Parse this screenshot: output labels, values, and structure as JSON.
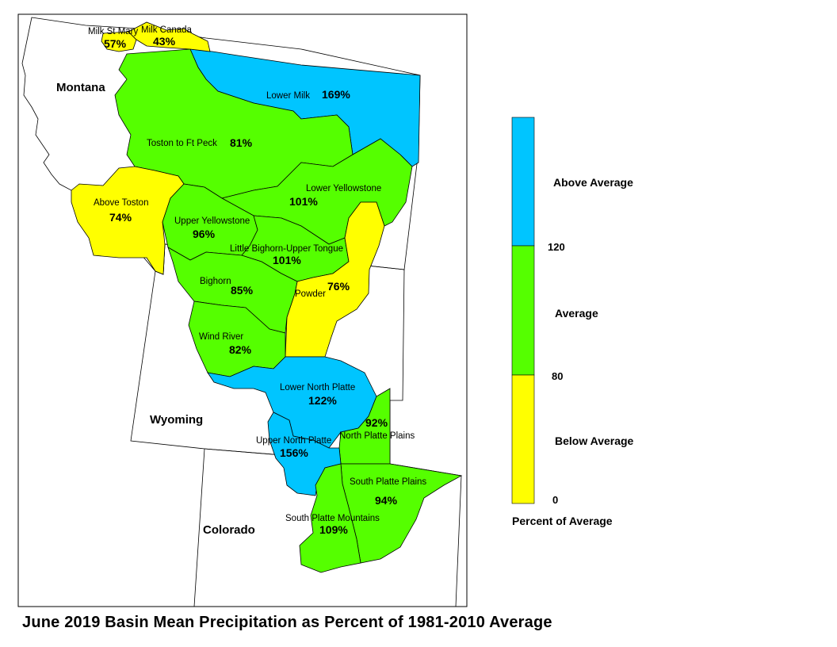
{
  "caption": "June 2019 Basin Mean Precipitation as Percent of 1981-2010 Average",
  "colors": {
    "above": "#00c5ff",
    "average": "#55ff00",
    "below": "#ffff00"
  },
  "states": {
    "montana": "Montana",
    "wyoming": "Wyoming",
    "colorado": "Colorado"
  },
  "basins": {
    "milk_st_mary": {
      "name": "Milk St Mary",
      "pct": "57%",
      "category": "below"
    },
    "milk_canada": {
      "name": "Milk Canada",
      "pct": "43%",
      "category": "below"
    },
    "lower_milk": {
      "name": "Lower Milk",
      "pct": "169%",
      "category": "above"
    },
    "toston_ft_peck": {
      "name": "Toston to Ft Peck",
      "pct": "81%",
      "category": "average"
    },
    "above_toston": {
      "name": "Above Toston",
      "pct": "74%",
      "category": "below"
    },
    "lower_yellowstone": {
      "name": "Lower Yellowstone",
      "pct": "101%",
      "category": "average"
    },
    "upper_yellowstone": {
      "name": "Upper Yellowstone",
      "pct": "96%",
      "category": "average"
    },
    "little_bighorn": {
      "name": "Little Bighorn-Upper Tongue",
      "pct": "101%",
      "category": "average"
    },
    "powder": {
      "name": "Powder",
      "pct": "76%",
      "category": "below"
    },
    "bighorn": {
      "name": "Bighorn",
      "pct": "85%",
      "category": "average"
    },
    "wind_river": {
      "name": "Wind River",
      "pct": "82%",
      "category": "average"
    },
    "lower_north_platte": {
      "name": "Lower North Platte",
      "pct": "122%",
      "category": "above"
    },
    "north_platte_plains": {
      "name": "North Platte Plains",
      "pct": "92%",
      "category": "average"
    },
    "upper_north_platte": {
      "name": "Upper North Platte",
      "pct": "156%",
      "category": "above"
    },
    "south_platte_plains": {
      "name": "South Platte Plains",
      "pct": "94%",
      "category": "average"
    },
    "south_platte_mountains": {
      "name": "South Platte Mountains",
      "pct": "109%",
      "category": "average"
    }
  },
  "legend": {
    "above_label": "Above Average",
    "average_label": "Average",
    "below_label": "Below Average",
    "tick_high": "120",
    "tick_mid": "80",
    "tick_low": "0",
    "title": "Percent of Average"
  }
}
